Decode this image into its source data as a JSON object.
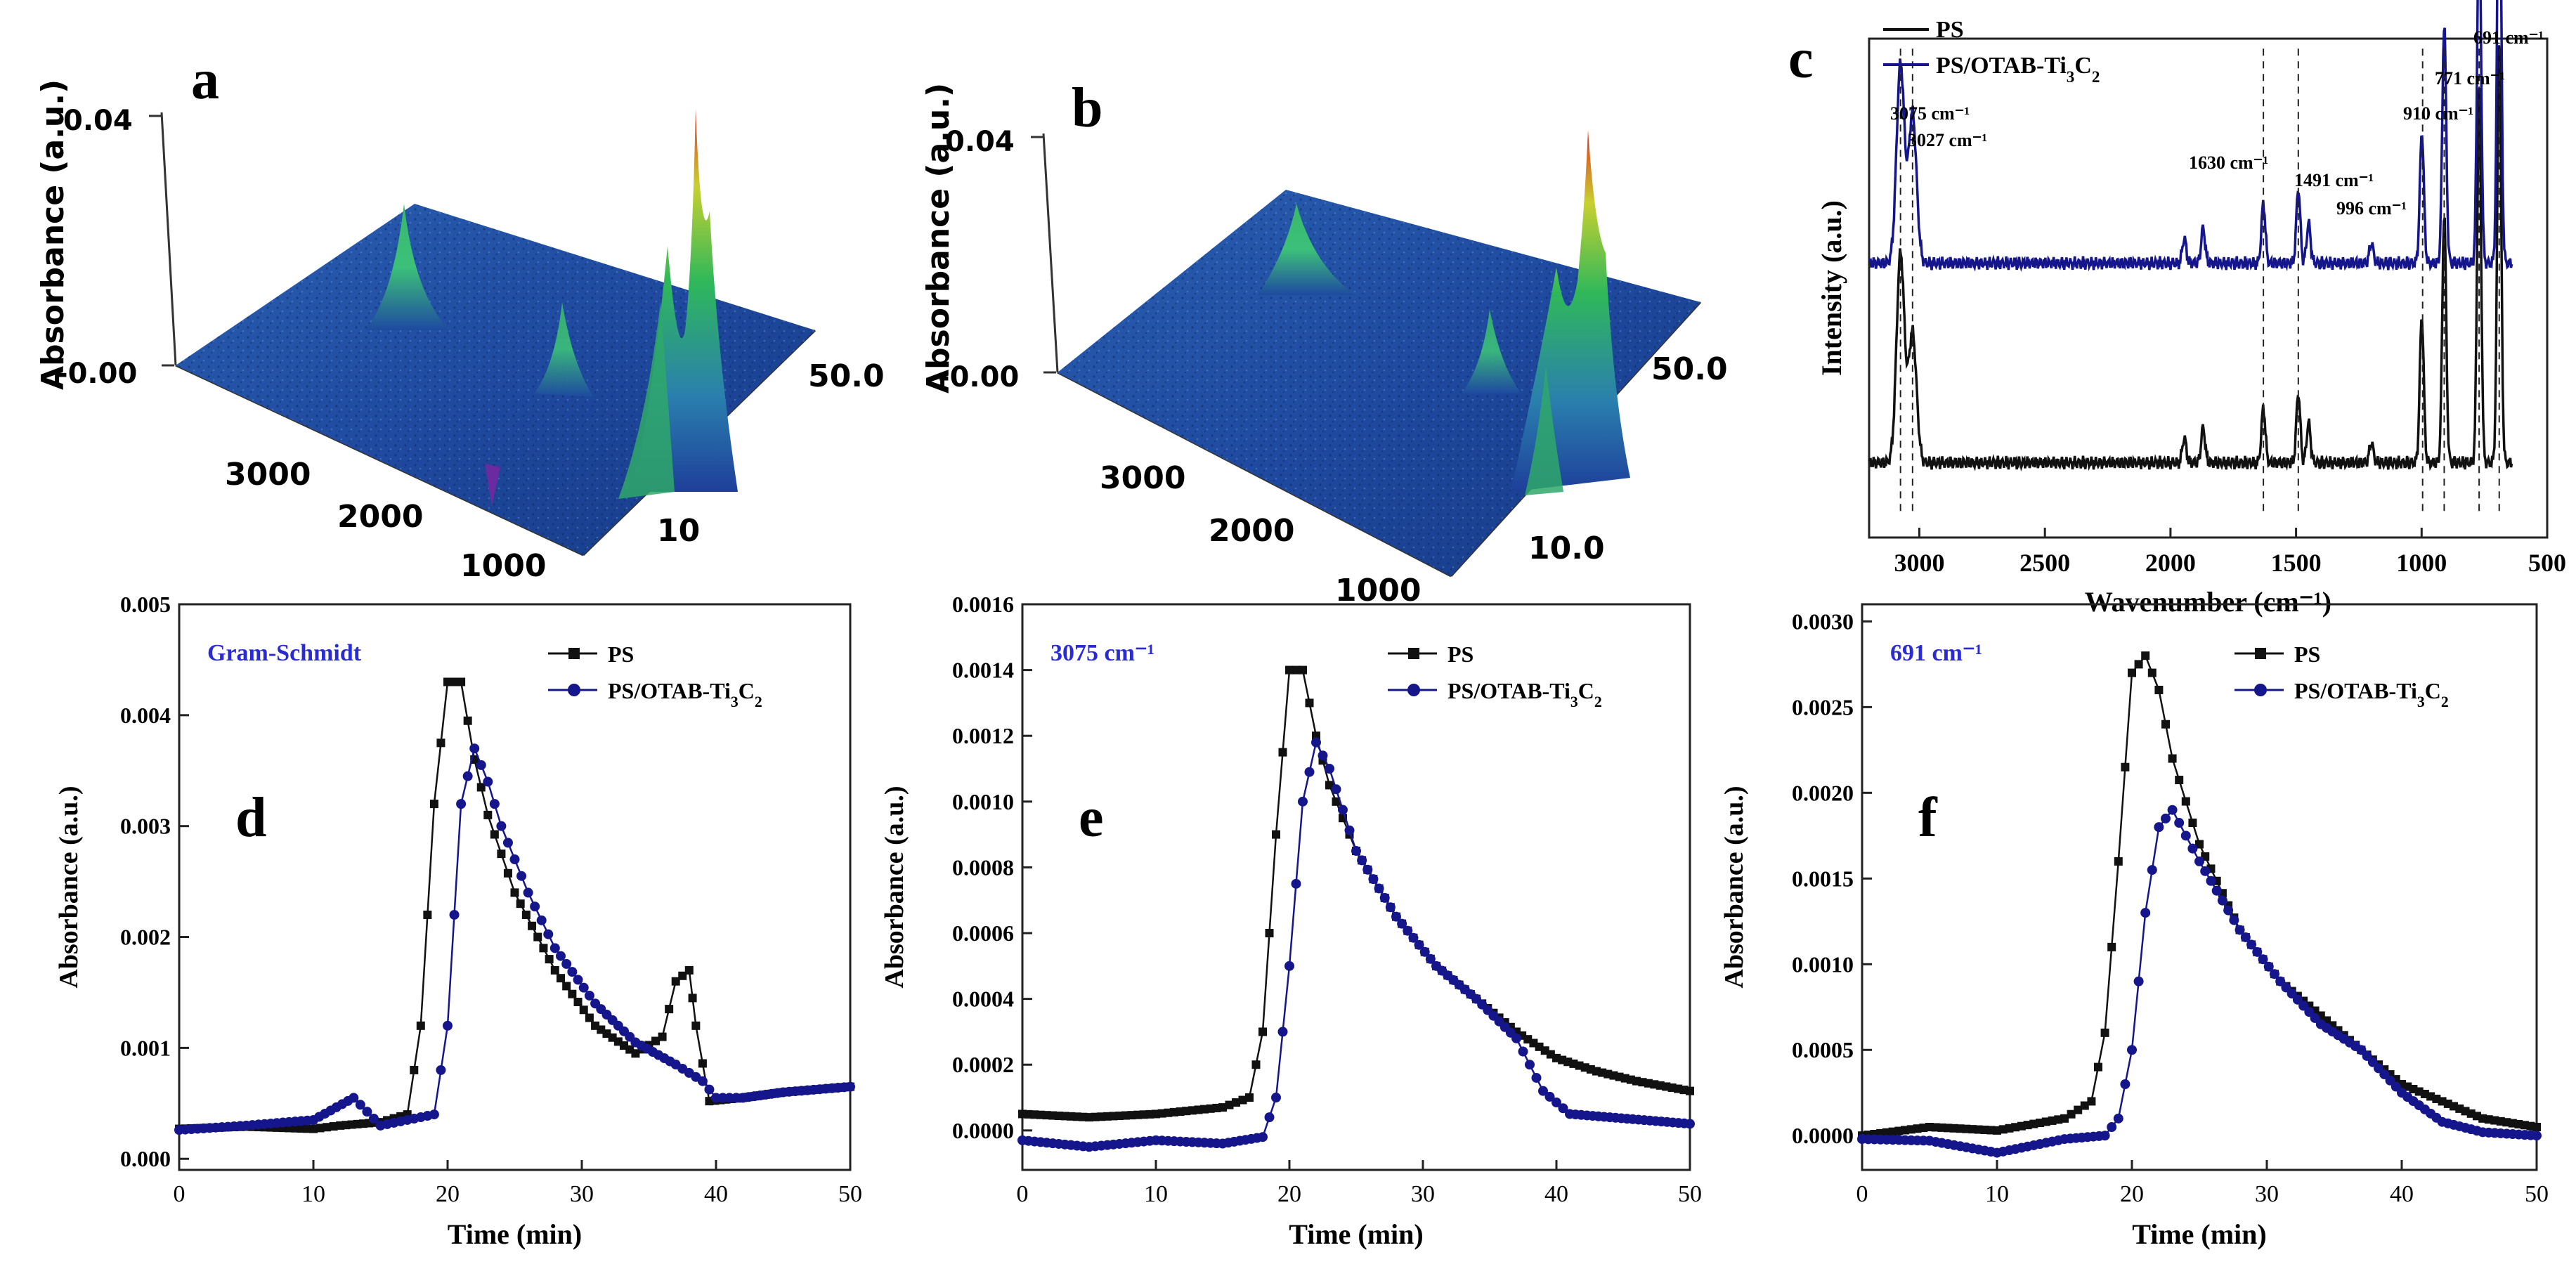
{
  "colors": {
    "ps": "#111111",
    "composite": "#16168c",
    "annotation": "#2b2bd6",
    "surface_low": "#1e3f9a",
    "surface_mid": "#2d8f7a",
    "surface_high": "#e03020"
  },
  "panel_labels": {
    "a": "a",
    "b": "b",
    "c": "c",
    "d": "d",
    "e": "e",
    "f": "f"
  },
  "surface_panels": [
    {
      "label": "a",
      "zlabel": "Absorbance (a.u.)",
      "z_ticks": [
        "0.04",
        "-0.00"
      ],
      "wavenumber_ticks": [
        "3000",
        "2000",
        "1000"
      ],
      "time_ticks": [
        "50.0",
        "10"
      ]
    },
    {
      "label": "b",
      "zlabel": "Absorbance (a.u.)",
      "z_ticks": [
        "0.04",
        "-0.00"
      ],
      "wavenumber_ticks": [
        "3000",
        "2000",
        "1000"
      ],
      "time_ticks": [
        "50.0",
        "10.0"
      ]
    }
  ],
  "chart_data": [
    {
      "id": "c",
      "type": "line",
      "xlabel": "Wavenumber (cm⁻¹)",
      "ylabel": "Intensity (a.u.)",
      "xlim": [
        3200,
        500
      ],
      "xticks": [
        "3000",
        "2500",
        "2000",
        "1500",
        "1000",
        "500"
      ],
      "legend": [
        "PS",
        "PS/OTAB-Ti3C2"
      ],
      "legend_position": "top-left",
      "annotations": [
        "3075 cm⁻¹",
        "3027 cm⁻¹",
        "1630 cm⁻¹",
        "1491 cm⁻¹",
        "996 cm⁻¹",
        "910 cm⁻¹",
        "771 cm⁻¹",
        "691 cm⁻¹"
      ],
      "peak_positions": [
        3075,
        3027,
        1630,
        1491,
        996,
        910,
        771,
        691
      ],
      "series": [
        {
          "name": "PS",
          "baseline": 0.15,
          "peaks": [
            [
              3075,
              0.42
            ],
            [
              3027,
              0.26
            ],
            [
              1945,
              0.05
            ],
            [
              1870,
              0.07
            ],
            [
              1630,
              0.11
            ],
            [
              1491,
              0.14
            ],
            [
              1450,
              0.08
            ],
            [
              1200,
              0.04
            ],
            [
              1000,
              0.25
            ],
            [
              996,
              0.05
            ],
            [
              910,
              0.5
            ],
            [
              771,
              0.75
            ],
            [
              691,
              0.85
            ]
          ]
        },
        {
          "name": "PS/OTAB-Ti3C2",
          "baseline": 0.55,
          "peaks": [
            [
              3075,
              0.4
            ],
            [
              3027,
              0.3
            ],
            [
              1945,
              0.05
            ],
            [
              1870,
              0.07
            ],
            [
              1630,
              0.12
            ],
            [
              1491,
              0.15
            ],
            [
              1450,
              0.08
            ],
            [
              1200,
              0.04
            ],
            [
              1000,
              0.2
            ],
            [
              996,
              0.07
            ],
            [
              910,
              0.48
            ],
            [
              771,
              0.72
            ],
            [
              691,
              0.92
            ]
          ]
        }
      ]
    },
    {
      "id": "d",
      "type": "line",
      "title": "Gram-Schmidt",
      "xlabel": "Time (min)",
      "ylabel": "Absorbance (a.u.)",
      "xlim": [
        0,
        50
      ],
      "ylim": [
        -0.0001,
        0.005
      ],
      "xticks": [
        0,
        10,
        20,
        30,
        40,
        50
      ],
      "yticks": [
        0.0,
        0.001,
        0.002,
        0.003,
        0.004,
        0.005
      ],
      "ytick_labels": [
        "0.000",
        "0.001",
        "0.002",
        "0.003",
        "0.004",
        "0.005"
      ],
      "legend": [
        "PS",
        "PS/OTAB-Ti3C2"
      ],
      "legend_position": "top-right",
      "series": [
        {
          "name": "PS",
          "x": [
            0,
            5,
            10,
            12,
            15,
            17,
            18,
            19,
            20,
            21,
            22,
            23,
            25,
            28,
            31,
            34,
            36,
            37,
            38,
            38.5,
            39.5,
            42,
            45,
            50
          ],
          "y": [
            0.00027,
            0.00029,
            0.00027,
            0.0003,
            0.00033,
            0.0004,
            0.0012,
            0.0032,
            0.0043,
            0.0043,
            0.0036,
            0.0031,
            0.0024,
            0.0017,
            0.0012,
            0.00095,
            0.0011,
            0.0016,
            0.0017,
            0.0012,
            0.00052,
            0.00055,
            0.0006,
            0.00065
          ]
        },
        {
          "name": "PS/OTAB-Ti3C2",
          "x": [
            0,
            5,
            10,
            13,
            15,
            17,
            19,
            20,
            21,
            22,
            23,
            24,
            26,
            28,
            31,
            34,
            37,
            39,
            40,
            42,
            45,
            50
          ],
          "y": [
            0.00026,
            0.0003,
            0.00035,
            0.00055,
            0.0003,
            0.00035,
            0.0004,
            0.0012,
            0.0032,
            0.0037,
            0.0034,
            0.003,
            0.0024,
            0.0019,
            0.0014,
            0.00105,
            0.00085,
            0.0007,
            0.00055,
            0.00055,
            0.0006,
            0.00065
          ]
        }
      ]
    },
    {
      "id": "e",
      "type": "line",
      "title": "3075 cm⁻¹",
      "xlabel": "Time (min)",
      "ylabel": "Absorbance (a.u.)",
      "xlim": [
        0,
        50
      ],
      "ylim": [
        -0.00012,
        0.0016
      ],
      "xticks": [
        0,
        10,
        20,
        30,
        40,
        50
      ],
      "yticks": [
        0.0,
        0.0002,
        0.0004,
        0.0006,
        0.0008,
        0.001,
        0.0012,
        0.0014,
        0.0016
      ],
      "ytick_labels": [
        "0.0000",
        "0.0002",
        "0.0004",
        "0.0006",
        "0.0008",
        "0.0010",
        "0.0012",
        "0.0014",
        "0.0016"
      ],
      "legend": [
        "PS",
        "PS/OTAB-Ti3C2"
      ],
      "legend_position": "top-right",
      "series": [
        {
          "name": "PS",
          "x": [
            0,
            5,
            10,
            15,
            17,
            18,
            19,
            20,
            21,
            22,
            23,
            25,
            28,
            31,
            34,
            37,
            40,
            43,
            46,
            50
          ],
          "y": [
            5e-05,
            4e-05,
            5e-05,
            7e-05,
            0.0001,
            0.0003,
            0.0009,
            0.0014,
            0.0014,
            0.0012,
            0.00105,
            0.00085,
            0.00065,
            0.0005,
            0.0004,
            0.0003,
            0.00022,
            0.00018,
            0.00015,
            0.00012
          ]
        },
        {
          "name": "PS/OTAB-Ti3C2",
          "x": [
            0,
            5,
            10,
            15,
            18,
            19,
            20,
            21,
            22,
            23,
            25,
            28,
            31,
            34,
            37,
            39,
            41,
            44,
            47,
            50
          ],
          "y": [
            -3e-05,
            -5e-05,
            -3e-05,
            -4e-05,
            -2e-05,
            0.0001,
            0.0005,
            0.001,
            0.00118,
            0.0011,
            0.00085,
            0.00065,
            0.0005,
            0.0004,
            0.00028,
            0.00012,
            5e-05,
            4e-05,
            3e-05,
            2e-05
          ]
        }
      ]
    },
    {
      "id": "f",
      "type": "line",
      "title": "691 cm⁻¹",
      "xlabel": "Time (min)",
      "ylabel": "Absorbance (a.u.)",
      "xlim": [
        0,
        50
      ],
      "ylim": [
        -0.0002,
        0.0031
      ],
      "xticks": [
        0,
        10,
        20,
        30,
        40,
        50
      ],
      "yticks": [
        0.0,
        0.0005,
        0.001,
        0.0015,
        0.002,
        0.0025,
        0.003
      ],
      "ytick_labels": [
        "0.0000",
        "0.0005",
        "0.0010",
        "0.0015",
        "0.0020",
        "0.0025",
        "0.0030"
      ],
      "legend": [
        "PS",
        "PS/OTAB-Ti3C2"
      ],
      "legend_position": "top-right",
      "series": [
        {
          "name": "PS",
          "x": [
            0,
            5,
            10,
            15,
            17,
            18,
            19,
            20,
            21,
            22,
            23,
            25,
            28,
            31,
            34,
            37,
            40,
            43,
            46,
            50
          ],
          "y": [
            0.0,
            5e-05,
            3e-05,
            0.0001,
            0.0002,
            0.0006,
            0.0016,
            0.0027,
            0.0028,
            0.0026,
            0.0022,
            0.0017,
            0.0012,
            0.0009,
            0.0007,
            0.0005,
            0.0003,
            0.0002,
            0.0001,
            5e-05
          ]
        },
        {
          "name": "PS/OTAB-Ti3C2",
          "x": [
            0,
            5,
            10,
            15,
            18,
            19,
            20,
            21,
            22,
            23,
            25,
            28,
            31,
            34,
            37,
            40,
            43,
            46,
            50
          ],
          "y": [
            -2e-05,
            -3e-05,
            -0.0001,
            -2e-05,
            0.0,
            0.0001,
            0.0005,
            0.0013,
            0.0018,
            0.0019,
            0.0016,
            0.0012,
            0.0009,
            0.00065,
            0.0005,
            0.00025,
            8e-05,
            2e-05,
            0.0
          ]
        }
      ]
    }
  ]
}
